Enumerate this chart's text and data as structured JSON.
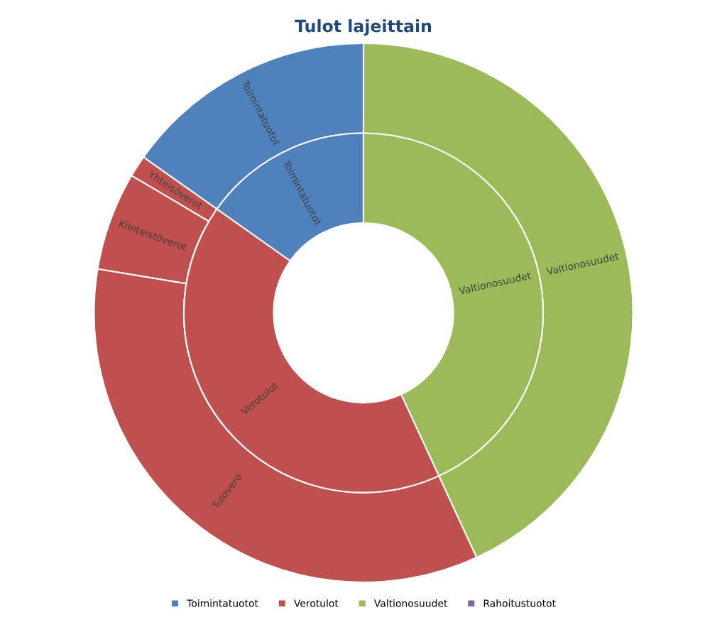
{
  "chart_data": {
    "type": "donut",
    "title": "Tulot lajeittain",
    "categories": [
      "Toimintatuotot",
      "Verotulot",
      "Yhteisöverot",
      "Kiinteistöverot",
      "Tulovero",
      "Valtionosuudet",
      "Rahoitustuotot"
    ],
    "colors": [
      "#4f81bd",
      "#c0504d",
      "#c0504d",
      "#c0504d",
      "#c0504d",
      "#9bbb59",
      "#8064a2"
    ],
    "series": [
      {
        "values": [
          15.2,
          null,
          1.3,
          5.9,
          34.5,
          43.1,
          null
        ]
      },
      {
        "values": [
          15.2,
          41.7,
          null,
          null,
          null,
          43.1,
          0
        ]
      }
    ],
    "legend": "bottom"
  }
}
